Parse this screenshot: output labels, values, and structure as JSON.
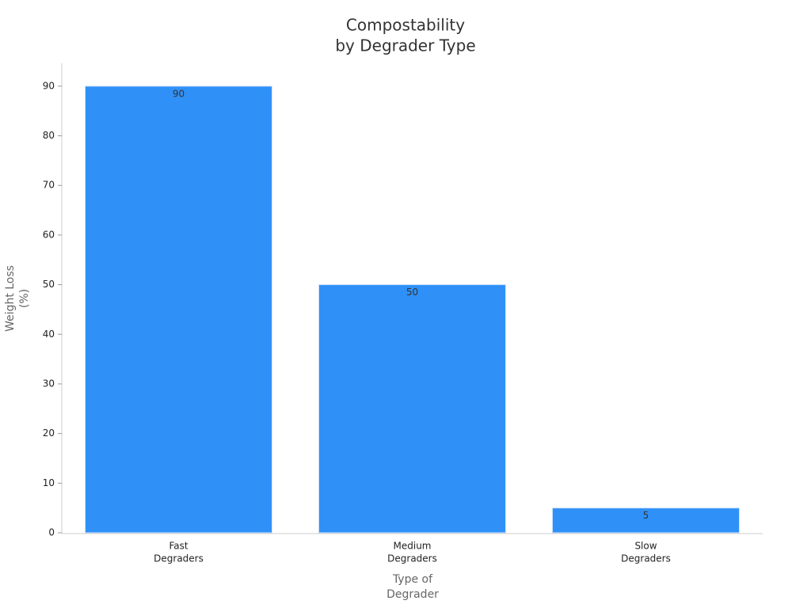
{
  "chart_data": {
    "type": "bar",
    "title": [
      "Compostability",
      "by Degrader Type"
    ],
    "xlabel": [
      "Type of",
      "Degrader"
    ],
    "ylabel": [
      "Weight Loss",
      "(%)"
    ],
    "categories": [
      [
        "Fast",
        "Degraders"
      ],
      [
        "Medium",
        "Degraders"
      ],
      [
        "Slow",
        "Degraders"
      ]
    ],
    "values": [
      90,
      50,
      5
    ],
    "color": "#2f91f8",
    "ylim": [
      0,
      94.6
    ],
    "yticks": [
      0,
      10,
      20,
      30,
      40,
      50,
      60,
      70,
      80,
      90
    ],
    "grid": false
  }
}
